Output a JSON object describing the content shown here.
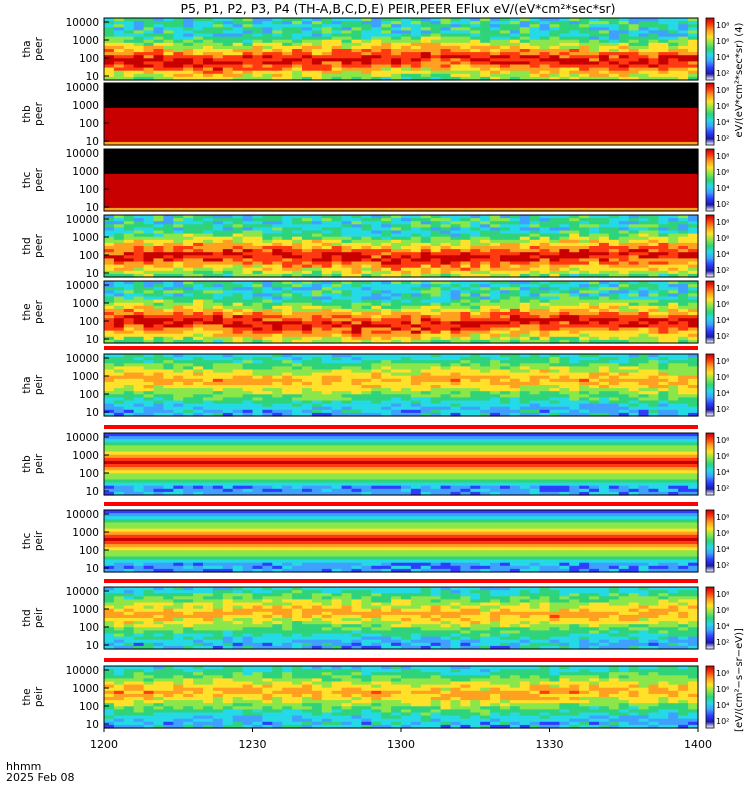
{
  "title": "P5, P1, P2, P3, P4 (TH-A,B,C,D,E) PEIR,PEER EFlux eV/(eV*cm²*sec*sr)",
  "colors": {
    "cmap": [
      "#ffffff",
      "#1a1aa6",
      "#2f3dff",
      "#3fa0ff",
      "#25d9e6",
      "#2fd37a",
      "#8be64a",
      "#ffe12a",
      "#ffa020",
      "#ff3a10",
      "#c80000"
    ]
  },
  "chart_data": {
    "type": "heatmap",
    "x_ticks": [
      "1200",
      "1230",
      "1300",
      "1330",
      "1400"
    ],
    "x_range_minutes": [
      0,
      120
    ],
    "x_label": "hhmm",
    "date_label": "2025 Feb 08",
    "y_ticks": [
      "10000",
      "1000",
      "100",
      "10"
    ],
    "y_range": [
      10,
      20000
    ],
    "y_scale": "log",
    "colorbar_ticks": [
      "10⁸",
      "10⁶",
      "10⁴",
      "10²"
    ],
    "colorbar_label": "[eV/(cm²−s−sr−eV)]",
    "colorbar_label_upper": "eV/(eV*cm²*sec*sr) (4)",
    "panels": [
      {
        "probe": "tha",
        "product": "peer",
        "species": "electron",
        "profile": "varied"
      },
      {
        "probe": "thb",
        "product": "peer",
        "species": "electron",
        "profile": "uniform"
      },
      {
        "probe": "thc",
        "product": "peer",
        "species": "electron",
        "profile": "uniform"
      },
      {
        "probe": "thd",
        "product": "peer",
        "species": "electron",
        "profile": "varied"
      },
      {
        "probe": "the",
        "product": "peer",
        "species": "electron",
        "profile": "varied"
      },
      {
        "probe": "tha",
        "product": "peir",
        "species": "ion",
        "profile": "varied"
      },
      {
        "probe": "thb",
        "product": "peir",
        "species": "ion",
        "profile": "uniform"
      },
      {
        "probe": "thc",
        "product": "peir",
        "species": "ion",
        "profile": "uniform"
      },
      {
        "probe": "thd",
        "product": "peir",
        "species": "ion",
        "profile": "varied"
      },
      {
        "probe": "the",
        "product": "peir",
        "species": "ion",
        "profile": "varied"
      }
    ]
  }
}
